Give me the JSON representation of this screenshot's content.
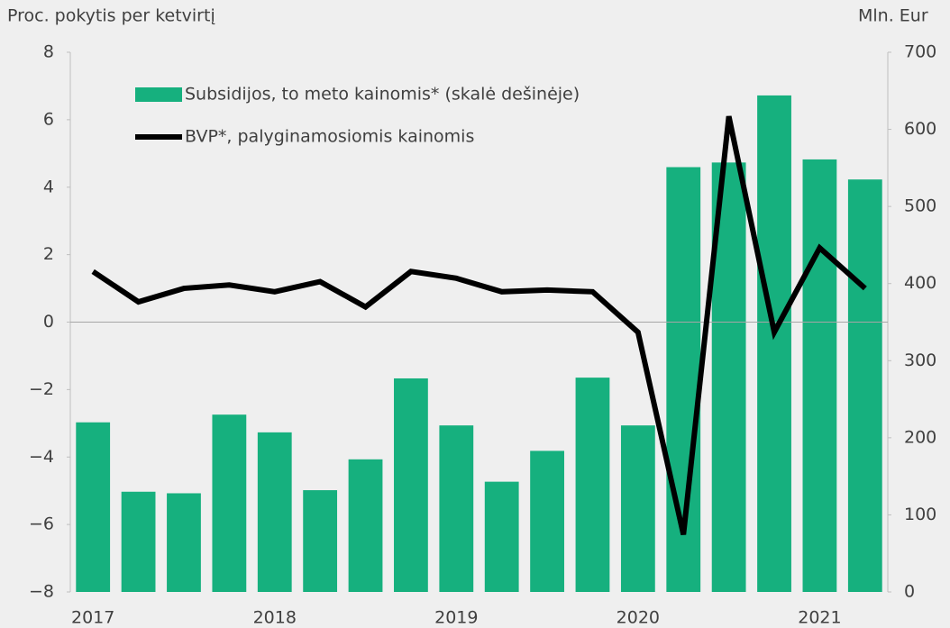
{
  "chart_data": {
    "type": "bar_line",
    "y_label": "Proc. pokytis per ketvirtį",
    "y2_label": "Mln. Eur",
    "categories": [
      "2017",
      null,
      null,
      null,
      "2018",
      null,
      null,
      null,
      "2019",
      null,
      null,
      null,
      "2020",
      null,
      null,
      null,
      "2021",
      null
    ],
    "series": [
      {
        "name": "Subsidijos, to meto kainomis* (skalė dešinėje)",
        "type": "bar",
        "axis": "y2",
        "color": "#16b07e",
        "values": [
          220,
          130,
          128,
          230,
          207,
          132,
          172,
          277,
          216,
          143,
          183,
          278,
          216,
          551,
          557,
          644,
          561,
          535
        ]
      },
      {
        "name": "BVP*, palyginamosiomis kainomis",
        "type": "line",
        "axis": "y",
        "color": "#000000",
        "values": [
          1.5,
          0.6,
          1.0,
          1.1,
          0.9,
          1.2,
          0.45,
          1.5,
          1.3,
          0.9,
          0.95,
          0.9,
          -0.3,
          -6.3,
          6.1,
          -0.3,
          2.2,
          1.0
        ]
      }
    ],
    "ylim": [
      -8,
      8
    ],
    "yticks": [
      {
        "value": -8,
        "label": "−8"
      },
      {
        "value": -6,
        "label": "−6"
      },
      {
        "value": -4,
        "label": "−4"
      },
      {
        "value": -2,
        "label": "−2"
      },
      0,
      2,
      4,
      6,
      8
    ],
    "y2lim": [
      0,
      700
    ],
    "y2ticks": [
      0,
      100,
      200,
      300,
      400,
      500,
      600,
      700
    ],
    "legend": "upper left"
  }
}
